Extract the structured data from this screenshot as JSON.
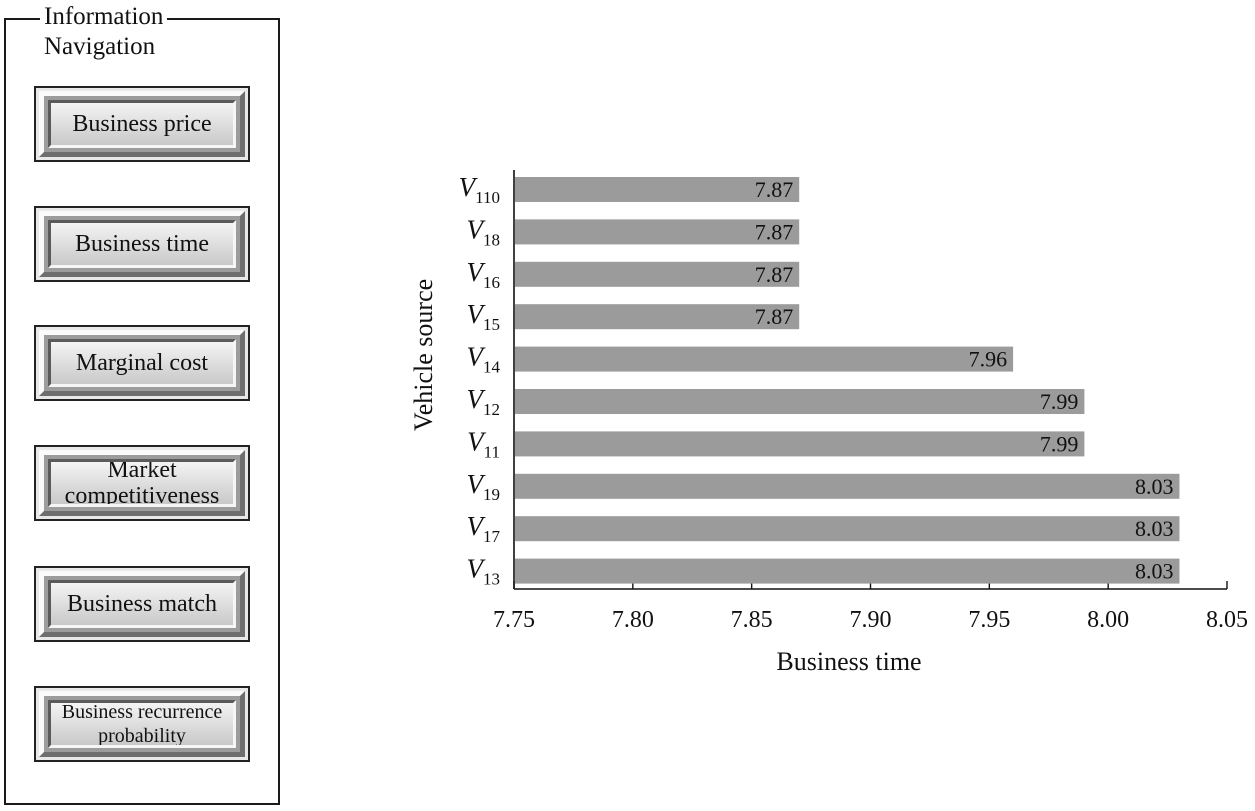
{
  "nav": {
    "legend": "Information",
    "subtitle": "Navigation",
    "buttons": [
      {
        "label": "Business price"
      },
      {
        "label": "Business time"
      },
      {
        "label": "Marginal cost"
      },
      {
        "label": "Market competitiveness"
      },
      {
        "label": "Business match"
      },
      {
        "label": "Business recurrence probability"
      }
    ]
  },
  "chart_data": {
    "type": "bar",
    "orientation": "horizontal",
    "title": "",
    "xlabel": "Business time",
    "ylabel": "Vehicle source",
    "xlim": [
      7.75,
      8.05
    ],
    "xticks": [
      "7.75",
      "7.80",
      "7.85",
      "7.90",
      "7.95",
      "8.00",
      "8.05"
    ],
    "categories": [
      {
        "base": "V",
        "sub": "110"
      },
      {
        "base": "V",
        "sub": "18"
      },
      {
        "base": "V",
        "sub": "16"
      },
      {
        "base": "V",
        "sub": "15"
      },
      {
        "base": "V",
        "sub": "14"
      },
      {
        "base": "V",
        "sub": "12"
      },
      {
        "base": "V",
        "sub": "11"
      },
      {
        "base": "V",
        "sub": "19"
      },
      {
        "base": "V",
        "sub": "17"
      },
      {
        "base": "V",
        "sub": "13"
      }
    ],
    "values": [
      7.87,
      7.87,
      7.87,
      7.87,
      7.96,
      7.99,
      7.99,
      8.03,
      8.03,
      8.03
    ],
    "value_labels": [
      "7.87",
      "7.87",
      "7.87",
      "7.87",
      "7.96",
      "7.99",
      "7.99",
      "8.03",
      "8.03",
      "8.03"
    ],
    "bar_color": "#9b9b9b",
    "grid": false
  }
}
